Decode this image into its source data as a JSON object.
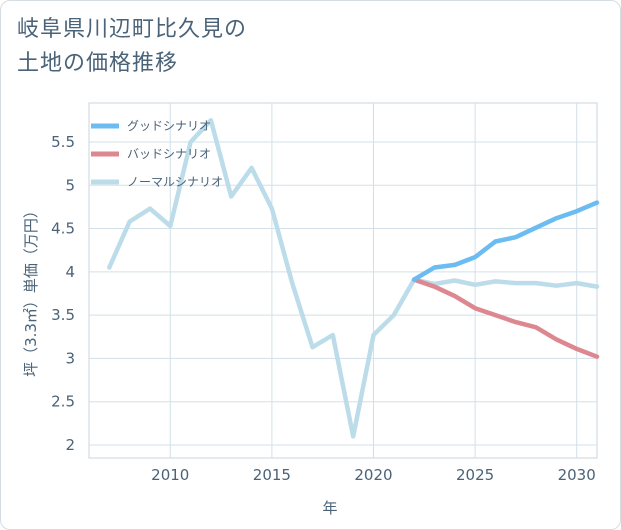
{
  "title_lines": [
    "岐阜県川辺町比久見の",
    "土地の価格推移"
  ],
  "chart_data": {
    "type": "line",
    "title": "岐阜県川辺町比久見の土地の価格推移",
    "xlabel": "年",
    "ylabel": "坪（3.3㎡）単価（万円）",
    "xlim": [
      2006,
      2031
    ],
    "ylim": [
      1.85,
      5.95
    ],
    "x_ticks": [
      2010,
      2015,
      2020,
      2025,
      2030
    ],
    "y_ticks": [
      2,
      2.5,
      3,
      3.5,
      4,
      4.5,
      5,
      5.5
    ],
    "x_tick_labels": [
      "2010",
      "2015",
      "2020",
      "2025",
      "2030"
    ],
    "y_tick_labels": [
      "2",
      "2.5",
      "3",
      "3.5",
      "4",
      "4.5",
      "5",
      "5.5"
    ],
    "grid": true,
    "legend_position": "top-left",
    "series": [
      {
        "name": "グッドシナリオ",
        "color": "#6bbcf0",
        "x": [
          2022,
          2023,
          2024,
          2025,
          2026,
          2027,
          2028,
          2029,
          2030,
          2031
        ],
        "values": [
          3.91,
          4.05,
          4.08,
          4.17,
          4.35,
          4.4,
          4.51,
          4.62,
          4.7,
          4.8
        ]
      },
      {
        "name": "バッドシナリオ",
        "color": "#dd8890",
        "x": [
          2022,
          2023,
          2024,
          2025,
          2026,
          2027,
          2028,
          2029,
          2030,
          2031
        ],
        "values": [
          3.91,
          3.83,
          3.72,
          3.58,
          3.5,
          3.42,
          3.36,
          3.22,
          3.11,
          3.02
        ]
      },
      {
        "name": "ノーマルシナリオ",
        "color": "#bcdcea",
        "x": [
          2007,
          2008,
          2009,
          2010,
          2011,
          2012,
          2013,
          2014,
          2015,
          2016,
          2017,
          2018,
          2019,
          2020,
          2021,
          2022,
          2023,
          2024,
          2025,
          2026,
          2027,
          2028,
          2029,
          2030,
          2031
        ],
        "values": [
          4.05,
          4.58,
          4.73,
          4.53,
          5.5,
          5.75,
          4.87,
          5.2,
          4.73,
          3.87,
          3.13,
          3.27,
          2.1,
          3.27,
          3.5,
          3.91,
          3.86,
          3.9,
          3.85,
          3.89,
          3.87,
          3.87,
          3.84,
          3.87,
          3.83
        ]
      }
    ]
  }
}
